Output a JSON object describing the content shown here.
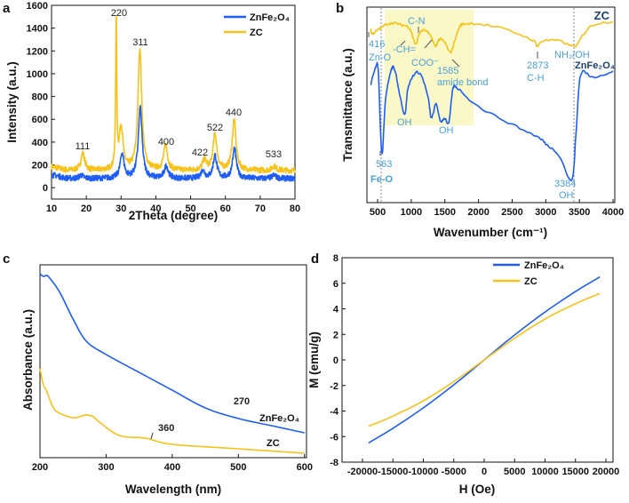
{
  "colors": {
    "znfe2o4": "#1f5ef5",
    "zc": "#f7c21a",
    "annotation": "#4a9fd8",
    "highlight": "#fbf8c8"
  },
  "chart_data": [
    {
      "panel": "a",
      "type": "line",
      "xlabel": "2Theta (degree)",
      "ylabel": "Intensity (a.u.)",
      "xlim": [
        10,
        80
      ],
      "ylim": [
        -100,
        1600
      ],
      "xticks": [
        10,
        20,
        30,
        40,
        50,
        60,
        70,
        80
      ],
      "yticks": [
        0,
        200,
        400,
        600,
        800,
        1000,
        1200,
        1400,
        1600
      ],
      "legend": "top-right",
      "series": [
        {
          "name": "ZnFe₂O₄",
          "baseline": 80,
          "peaks": [
            [
              18.5,
              110
            ],
            [
              30.3,
              300
            ],
            [
              35.5,
              700
            ],
            [
              43,
              190
            ],
            [
              53.5,
              150
            ],
            [
              57,
              280
            ],
            [
              62.6,
              340
            ],
            [
              74,
              110
            ]
          ]
        },
        {
          "name": "ZC",
          "baseline": 150,
          "peaks": [
            [
              19,
              300
            ],
            [
              28.6,
              1460
            ],
            [
              30,
              530
            ],
            [
              35.4,
              1220
            ],
            [
              42.8,
              370
            ],
            [
              54,
              240
            ],
            [
              57,
              470
            ],
            [
              62.5,
              590
            ],
            [
              74,
              190
            ]
          ]
        }
      ],
      "annotations": [
        "111",
        "220",
        "311",
        "400",
        "422",
        "522",
        "440",
        "533"
      ]
    },
    {
      "panel": "b",
      "type": "line",
      "xlabel": "Wavenumber (cm⁻¹)",
      "ylabel": "Transmittance (a.u.)",
      "xlim": [
        341,
        4026
      ],
      "ylim": [
        0,
        100
      ],
      "xticks": [
        500,
        1000,
        1500,
        2000,
        2500,
        3000,
        3500,
        4000
      ],
      "series": [
        {
          "name": "ZC",
          "points": [
            [
              400,
              88.6
            ],
            [
              416,
              86.4
            ],
            [
              480,
              87.7
            ],
            [
              550,
              89.5
            ],
            [
              650,
              91.4
            ],
            [
              750,
              91.8
            ],
            [
              850,
              90.9
            ],
            [
              950,
              90
            ],
            [
              1000,
              87.3
            ],
            [
              1068,
              80.9
            ],
            [
              1120,
              86.4
            ],
            [
              1200,
              88.2
            ],
            [
              1300,
              84.5
            ],
            [
              1358,
              80
            ],
            [
              1420,
              83.6
            ],
            [
              1500,
              81.8
            ],
            [
              1582,
              76.8
            ],
            [
              1650,
              83.2
            ],
            [
              1720,
              90
            ],
            [
              1800,
              91.4
            ],
            [
              2000,
              91.4
            ],
            [
              2400,
              88.6
            ],
            [
              2800,
              83.2
            ],
            [
              2876,
              80
            ],
            [
              2950,
              82.7
            ],
            [
              3200,
              82.7
            ],
            [
              3430,
              80
            ],
            [
              3550,
              85.5
            ],
            [
              3700,
              90.9
            ],
            [
              4000,
              92.7
            ]
          ]
        },
        {
          "name": "ZnFe₂O₄",
          "points": [
            [
              400,
              60.5
            ],
            [
              470,
              69.5
            ],
            [
              510,
              67.3
            ],
            [
              563,
              25
            ],
            [
              620,
              53.6
            ],
            [
              700,
              67.3
            ],
            [
              760,
              67.3
            ],
            [
              896,
              45.5
            ],
            [
              950,
              58.2
            ],
            [
              1050,
              65.9
            ],
            [
              1150,
              65
            ],
            [
              1250,
              53.6
            ],
            [
              1300,
              43.2
            ],
            [
              1370,
              50.5
            ],
            [
              1430,
              41.8
            ],
            [
              1500,
              43.2
            ],
            [
              1560,
              40.9
            ],
            [
              1620,
              58.2
            ],
            [
              1700,
              58.2
            ],
            [
              2000,
              49.1
            ],
            [
              2500,
              40
            ],
            [
              2900,
              33.2
            ],
            [
              3000,
              30
            ],
            [
              3200,
              24.1
            ],
            [
              3384,
              11.4
            ],
            [
              3450,
              35.5
            ],
            [
              3520,
              65.5
            ],
            [
              3700,
              64.1
            ],
            [
              4000,
              67.3
            ]
          ]
        }
      ],
      "series_labels": [
        "ZC",
        "ZnFe₂O₄"
      ],
      "annotations": {
        "a416": "416",
        "zno": "Zn-O",
        "ch": "-CH=",
        "cn": "C-N",
        "coo": "COO⁻",
        "a1585": "1585",
        "amide": "amide bond",
        "a2873": "2873",
        "chh": "C-H",
        "nh2oh": "NH₂/OH",
        "oh1": "OH",
        "oh2": "OH",
        "a563": "563",
        "feo": "Fe-O",
        "a3384": "3384",
        "oh3": "OH"
      }
    },
    {
      "panel": "c",
      "type": "line",
      "xlabel": "Wavelength (nm)",
      "ylabel": "Absorbance (a.u.)",
      "xlim": [
        200,
        603
      ],
      "ylim": [
        0,
        100
      ],
      "xticks": [
        200,
        300,
        400,
        500,
        600
      ],
      "series": [
        {
          "name": "ZnFe₂O₄",
          "points": [
            [
              200,
              95.4
            ],
            [
              205,
              94
            ],
            [
              210,
              94.5
            ],
            [
              215,
              93
            ],
            [
              230,
              85.7
            ],
            [
              250,
              71.9
            ],
            [
              270,
              60.4
            ],
            [
              300,
              53.5
            ],
            [
              350,
              44.2
            ],
            [
              400,
              35
            ],
            [
              450,
              25.8
            ],
            [
              500,
              20.3
            ],
            [
              550,
              16.6
            ],
            [
              600,
              12.9
            ]
          ]
        },
        {
          "name": "ZC",
          "points": [
            [
              200,
              46.1
            ],
            [
              205,
              38
            ],
            [
              210,
              34.6
            ],
            [
              220,
              26
            ],
            [
              230,
              23
            ],
            [
              250,
              20.7
            ],
            [
              262,
              21.5
            ],
            [
              270,
              22.1
            ],
            [
              280,
              21.4
            ],
            [
              290,
              18.4
            ],
            [
              320,
              11.5
            ],
            [
              360,
              10.1
            ],
            [
              400,
              6.9
            ],
            [
              500,
              4.6
            ],
            [
              600,
              2.3
            ]
          ]
        }
      ],
      "series_labels": [
        "ZnFe₂O₄",
        "ZC"
      ],
      "annotations": [
        "270",
        "360"
      ]
    },
    {
      "panel": "d",
      "type": "line",
      "xlabel": "H (Oe)",
      "ylabel": "M (emu/g)",
      "xlim": [
        -23360,
        21170
      ],
      "ylim": [
        -8,
        8
      ],
      "xticks": [
        -20000,
        -15000,
        -10000,
        -5000,
        0,
        5000,
        10000,
        15000,
        20000
      ],
      "yticks": [
        -8,
        -6,
        -4,
        -2,
        0,
        2,
        4,
        6,
        8
      ],
      "legend": "top-center",
      "series": [
        {
          "name": "ZnFe₂O₄",
          "points": [
            [
              -19000,
              -6.5
            ],
            [
              -15000,
              -5.35
            ],
            [
              -10000,
              -3.75
            ],
            [
              -5000,
              -1.95
            ],
            [
              0,
              0
            ],
            [
              5000,
              1.95
            ],
            [
              10000,
              3.75
            ],
            [
              15000,
              5.35
            ],
            [
              19000,
              6.5
            ]
          ]
        },
        {
          "name": "ZC",
          "points": [
            [
              -19000,
              -5.2
            ],
            [
              -15000,
              -4.4
            ],
            [
              -10000,
              -3.2
            ],
            [
              -5000,
              -1.7
            ],
            [
              0,
              0
            ],
            [
              5000,
              1.7
            ],
            [
              10000,
              3.2
            ],
            [
              15000,
              4.4
            ],
            [
              19000,
              5.2
            ]
          ]
        }
      ]
    }
  ],
  "panel_labels": [
    "a",
    "b",
    "c",
    "d"
  ]
}
